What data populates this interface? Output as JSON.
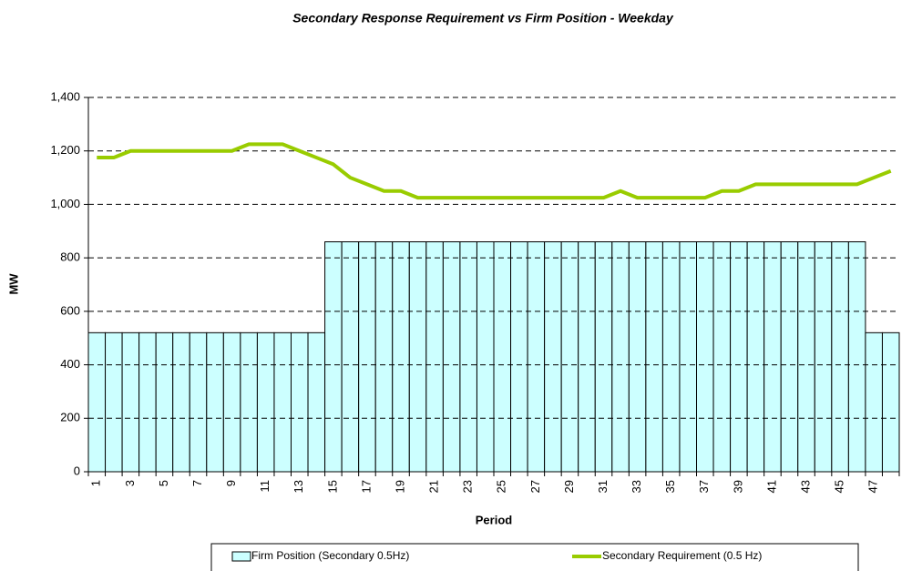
{
  "chart_data": {
    "type": "combo",
    "title": "Secondary Response Requirement vs Firm Position - Weekday",
    "xlabel": "Period",
    "ylabel": "MW",
    "categories": [
      1,
      null,
      3,
      null,
      5,
      null,
      7,
      null,
      9,
      null,
      11,
      null,
      13,
      null,
      15,
      null,
      17,
      null,
      19,
      null,
      21,
      null,
      23,
      null,
      25,
      null,
      27,
      null,
      29,
      null,
      31,
      null,
      33,
      null,
      35,
      null,
      37,
      null,
      39,
      null,
      41,
      null,
      43,
      null,
      45,
      null,
      47,
      null
    ],
    "series": [
      {
        "name": "Firm Position (Secondary 0.5Hz)",
        "type": "bar",
        "color": "#ccffff",
        "values": [
          520,
          520,
          520,
          520,
          520,
          520,
          520,
          520,
          520,
          520,
          520,
          520,
          520,
          520,
          860,
          860,
          860,
          860,
          860,
          860,
          860,
          860,
          860,
          860,
          860,
          860,
          860,
          860,
          860,
          860,
          860,
          860,
          860,
          860,
          860,
          860,
          860,
          860,
          860,
          860,
          860,
          860,
          860,
          860,
          860,
          860,
          520,
          520
        ]
      },
      {
        "name": "Secondary Requirement (0.5 Hz)",
        "type": "line",
        "color": "#99cc00",
        "values": [
          1175,
          1175,
          1200,
          1200,
          1200,
          1200,
          1200,
          1200,
          1200,
          1225,
          1225,
          1225,
          1200,
          1175,
          1150,
          1100,
          1075,
          1050,
          1050,
          1025,
          1025,
          1025,
          1025,
          1025,
          1025,
          1025,
          1025,
          1025,
          1025,
          1025,
          1025,
          1050,
          1025,
          1025,
          1025,
          1025,
          1025,
          1050,
          1050,
          1075,
          1075,
          1075,
          1075,
          1075,
          1075,
          1075,
          1100,
          1125
        ]
      }
    ],
    "ylim": [
      0,
      1400
    ],
    "yticks": [
      0,
      200,
      400,
      600,
      800,
      {
        "value": 1000,
        "label": "1,000"
      },
      {
        "value": 1200,
        "label": "1,200"
      },
      {
        "value": 1400,
        "label": "1,400"
      }
    ],
    "grid": true,
    "legend": "bottom"
  }
}
